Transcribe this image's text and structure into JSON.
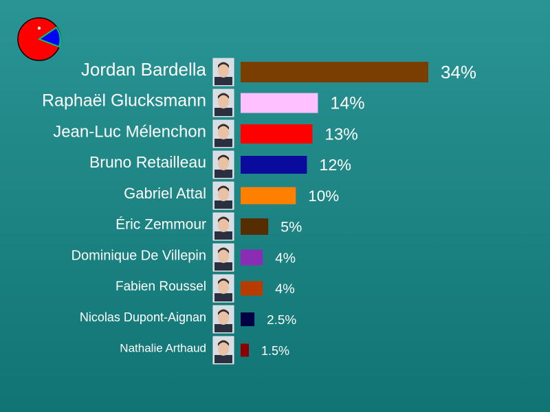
{
  "chart_data": {
    "type": "bar",
    "orientation": "horizontal",
    "categories": [
      "Jordan Bardella",
      "Raphaël Glucksmann",
      "Jean-Luc Mélenchon",
      "Bruno Retailleau",
      "Gabriel Attal",
      "Éric Zemmour",
      "Dominique De Villepin",
      "Fabien Roussel",
      "Nicolas Dupont-Aignan",
      "Nathalie Arthaud"
    ],
    "values": [
      34,
      14,
      13,
      12,
      10,
      5,
      4,
      4,
      2.5,
      1.5
    ],
    "value_labels": [
      "34%",
      "14%",
      "13%",
      "12%",
      "10%",
      "5%",
      "4%",
      "4%",
      "2.5%",
      "1.5%"
    ],
    "colors": [
      "#7a3f00",
      "#ffc0ff",
      "#ff0000",
      "#0a0a9c",
      "#ff7f00",
      "#552d00",
      "#8a2cb4",
      "#b83c00",
      "#000044",
      "#8a0000"
    ],
    "xlim": [
      0,
      38
    ],
    "grid": false,
    "title": "",
    "xlabel": "",
    "ylabel": ""
  },
  "logo": {
    "icon": "pie-chart-icon",
    "colors": {
      "main": "#ff0000",
      "slice": "#0000ff",
      "ring": "#000000",
      "dot": "#ffffff"
    }
  },
  "background": {
    "top": "#2a9494",
    "bottom": "#117474"
  },
  "photo_icon": "candidate-photo-icon"
}
